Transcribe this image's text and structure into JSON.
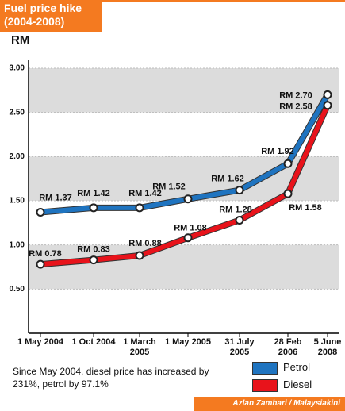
{
  "chart_data": {
    "type": "line",
    "title": "Fuel price hike (2004-2008)",
    "y_label": "RM",
    "categories": [
      "1 May 2004",
      "1 Oct 2004",
      "1 March 2005",
      "1 May 2005",
      "31 July 2005",
      "28 Feb 2006",
      "5 June 2008"
    ],
    "series": [
      {
        "name": "Petrol",
        "color": "#1f74c0",
        "values": [
          1.37,
          1.42,
          1.42,
          1.52,
          1.62,
          1.92,
          2.7
        ],
        "value_labels": [
          "RM 1.37",
          "RM 1.42",
          "RM 1.42",
          "RM 1.52",
          "RM 1.62",
          "RM 1.92",
          "RM 2.70"
        ]
      },
      {
        "name": "Diesel",
        "color": "#e8131b",
        "values": [
          0.78,
          0.83,
          0.88,
          1.08,
          1.28,
          1.58,
          2.58
        ],
        "value_labels": [
          "RM 0.78",
          "RM 0.83",
          "RM 0.88",
          "RM 1.08",
          "RM 1.28",
          "RM 1.58",
          "RM 2.58"
        ]
      }
    ],
    "ylim": [
      0,
      3
    ],
    "yticks": [
      {
        "value": 0.5,
        "label": "0.50"
      },
      {
        "value": 1,
        "label": "1.00"
      },
      {
        "value": 1.5,
        "label": "1.50"
      },
      {
        "value": 2,
        "label": "2.00"
      },
      {
        "value": 2.5,
        "label": "2.50"
      },
      {
        "value": 3,
        "label": "3.00"
      }
    ],
    "note": "Since May 2004, diesel price has increased by 231%, petrol by 97.1%",
    "credit": "Azlan Zamhari / Malaysiakini"
  }
}
